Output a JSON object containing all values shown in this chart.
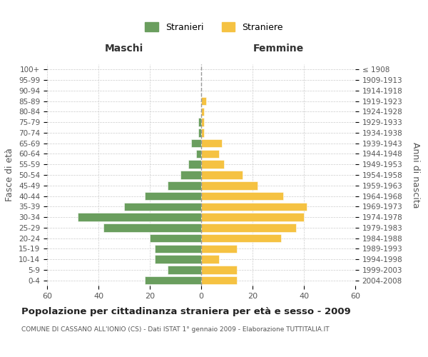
{
  "age_groups": [
    "0-4",
    "5-9",
    "10-14",
    "15-19",
    "20-24",
    "25-29",
    "30-34",
    "35-39",
    "40-44",
    "45-49",
    "50-54",
    "55-59",
    "60-64",
    "65-69",
    "70-74",
    "75-79",
    "80-84",
    "85-89",
    "90-94",
    "95-99",
    "100+"
  ],
  "birth_years": [
    "2004-2008",
    "1999-2003",
    "1994-1998",
    "1989-1993",
    "1984-1988",
    "1979-1983",
    "1974-1978",
    "1969-1973",
    "1964-1968",
    "1959-1963",
    "1954-1958",
    "1949-1953",
    "1944-1948",
    "1939-1943",
    "1934-1938",
    "1929-1933",
    "1924-1928",
    "1919-1923",
    "1914-1918",
    "1909-1913",
    "≤ 1908"
  ],
  "males": [
    22,
    13,
    18,
    18,
    20,
    38,
    48,
    30,
    22,
    13,
    8,
    5,
    2,
    4,
    1,
    1,
    0,
    0,
    0,
    0,
    0
  ],
  "females": [
    14,
    14,
    7,
    14,
    31,
    37,
    40,
    41,
    32,
    22,
    16,
    9,
    7,
    8,
    1,
    1,
    1,
    2,
    0,
    0,
    0
  ],
  "male_color": "#6a9e5e",
  "female_color": "#f5c242",
  "background_color": "#ffffff",
  "grid_color": "#cccccc",
  "title": "Popolazione per cittadinanza straniera per età e sesso - 2009",
  "subtitle": "COMUNE DI CASSANO ALL'IONIO (CS) - Dati ISTAT 1° gennaio 2009 - Elaborazione TUTTITALIA.IT",
  "xlabel_left": "Maschi",
  "xlabel_right": "Femmine",
  "ylabel_left": "Fasce di età",
  "ylabel_right": "Anni di nascita",
  "xlim": 60,
  "legend_male": "Stranieri",
  "legend_female": "Straniere"
}
